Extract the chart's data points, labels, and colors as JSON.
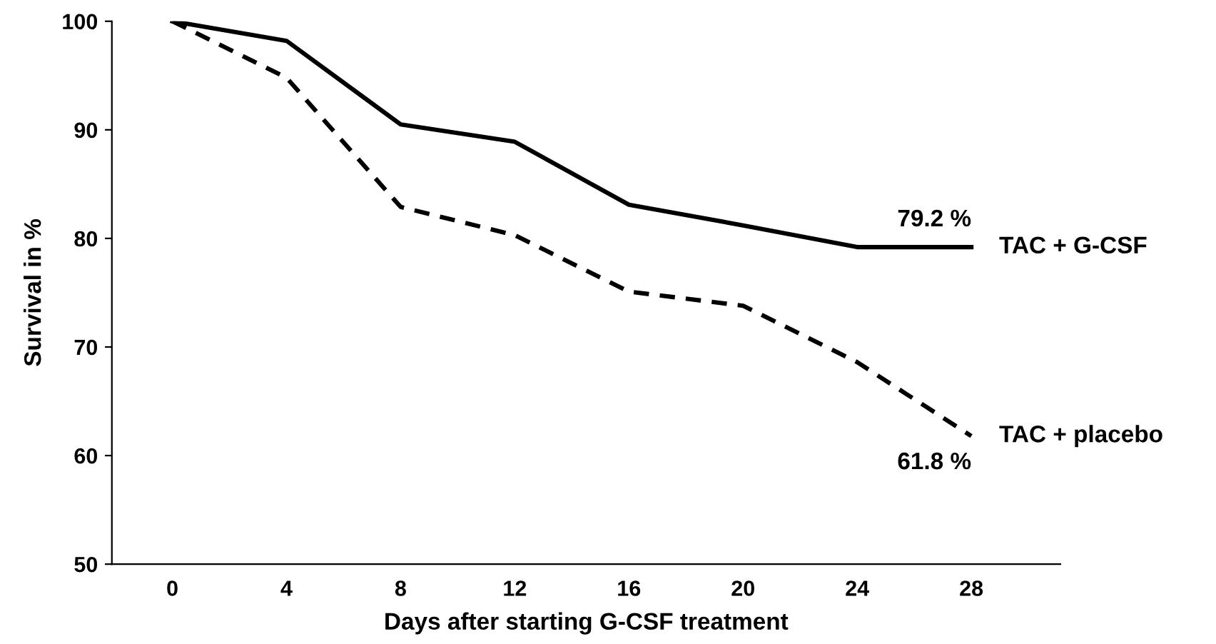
{
  "chart_data": {
    "type": "line",
    "xlabel": "Days after starting G-CSF treatment",
    "ylabel": "Survival in %",
    "categories": [
      "0",
      "4",
      "8",
      "12",
      "16",
      "20",
      "24",
      "28"
    ],
    "ylim": [
      50,
      100
    ],
    "yticks": [
      50,
      60,
      70,
      80,
      90,
      100
    ],
    "grid": false,
    "legend": false,
    "marker": "none",
    "series": [
      {
        "name": "TAC + G-CSF",
        "color": "#000000",
        "line_style": "solid",
        "values": [
          100,
          98.2,
          90.5,
          88.9,
          83.1,
          81.2,
          79.2,
          79.2
        ],
        "value_labels": [
          null,
          null,
          null,
          null,
          null,
          null,
          null,
          "79.2 %"
        ]
      },
      {
        "name": "TAC + placebo",
        "color": "#000000",
        "line_style": "dashed",
        "values": [
          100,
          94.8,
          82.9,
          80.3,
          75.1,
          73.8,
          68.6,
          61.8
        ],
        "value_labels": [
          null,
          null,
          null,
          null,
          null,
          null,
          null,
          "61.8 %"
        ]
      }
    ]
  }
}
